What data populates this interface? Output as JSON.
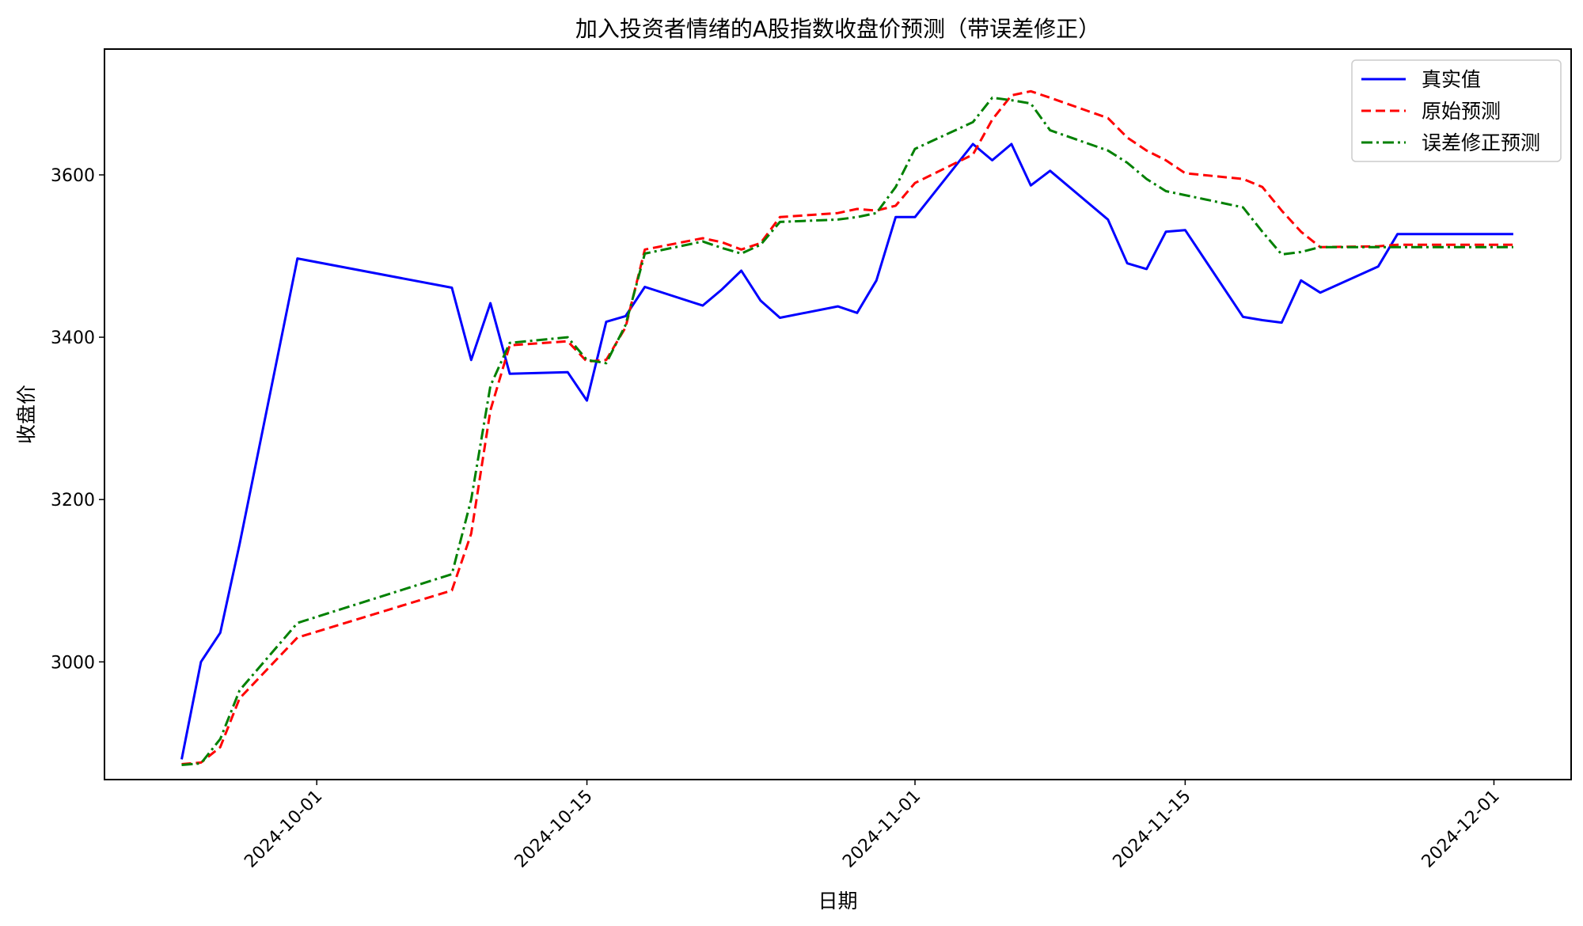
{
  "chart_data": {
    "type": "line",
    "title": "加入投资者情绪的A股指数收盘价预测（带误差修正）",
    "xlabel": "日期",
    "ylabel": "收盘价",
    "xlim": [
      "2024-09-20",
      "2024-12-05"
    ],
    "ylim": [
      2855,
      3755
    ],
    "x_ticks": [
      "2024-10-01",
      "2024-10-15",
      "2024-11-01",
      "2024-11-15",
      "2024-12-01"
    ],
    "y_ticks": [
      3000,
      3200,
      3400,
      3600
    ],
    "grid": false,
    "legend_position": "top-right",
    "x": [
      "2024-09-24",
      "2024-09-25",
      "2024-09-26",
      "2024-09-27",
      "2024-09-30",
      "2024-10-08",
      "2024-10-09",
      "2024-10-10",
      "2024-10-11",
      "2024-10-14",
      "2024-10-15",
      "2024-10-16",
      "2024-10-17",
      "2024-10-18",
      "2024-10-21",
      "2024-10-22",
      "2024-10-23",
      "2024-10-24",
      "2024-10-25",
      "2024-10-28",
      "2024-10-29",
      "2024-10-30",
      "2024-10-31",
      "2024-11-01",
      "2024-11-04",
      "2024-11-05",
      "2024-11-06",
      "2024-11-07",
      "2024-11-08",
      "2024-11-11",
      "2024-11-12",
      "2024-11-13",
      "2024-11-14",
      "2024-11-15",
      "2024-11-18",
      "2024-11-19",
      "2024-11-20",
      "2024-11-21",
      "2024-11-22",
      "2024-11-25",
      "2024-11-26",
      "2024-11-27",
      "2024-11-28",
      "2024-11-29",
      "2024-12-02"
    ],
    "series": [
      {
        "name": "真实值",
        "color": "#0000ff",
        "style": "solid",
        "values": [
          2880,
          3000,
          3036,
          3145,
          3497,
          3461,
          3372,
          3442,
          3355,
          3357,
          3322,
          3419,
          3426,
          3462,
          3439,
          3459,
          3482,
          3445,
          3424,
          3438,
          3430,
          3470,
          3548,
          3548,
          3638,
          3618,
          3638,
          3587,
          3605,
          3545,
          3491,
          3484,
          3530,
          3532,
          3425,
          3421,
          3418,
          3470,
          3455,
          3487,
          3527,
          3527,
          3527,
          3527,
          3527
        ]
      },
      {
        "name": "原始预测",
        "color": "#ff0000",
        "style": "dashed",
        "values": [
          2874,
          2876,
          2895,
          2955,
          3030,
          3088,
          3158,
          3310,
          3390,
          3395,
          3370,
          3372,
          3412,
          3508,
          3522,
          3517,
          3508,
          3516,
          3548,
          3553,
          3558,
          3556,
          3562,
          3590,
          3625,
          3668,
          3698,
          3703,
          3695,
          3670,
          3646,
          3630,
          3618,
          3602,
          3595,
          3585,
          3556,
          3530,
          3511,
          3512,
          3514,
          3514,
          3514,
          3514,
          3514
        ]
      },
      {
        "name": "误差修正预测",
        "color": "#008000",
        "style": "dashdot",
        "values": [
          2873,
          2875,
          2905,
          2965,
          3048,
          3108,
          3200,
          3340,
          3393,
          3400,
          3372,
          3368,
          3415,
          3503,
          3518,
          3510,
          3503,
          3514,
          3542,
          3545,
          3548,
          3553,
          3585,
          3632,
          3665,
          3695,
          3692,
          3688,
          3655,
          3630,
          3615,
          3595,
          3580,
          3575,
          3560,
          3530,
          3502,
          3505,
          3511,
          3511,
          3511,
          3511,
          3511,
          3511,
          3511
        ]
      }
    ]
  }
}
